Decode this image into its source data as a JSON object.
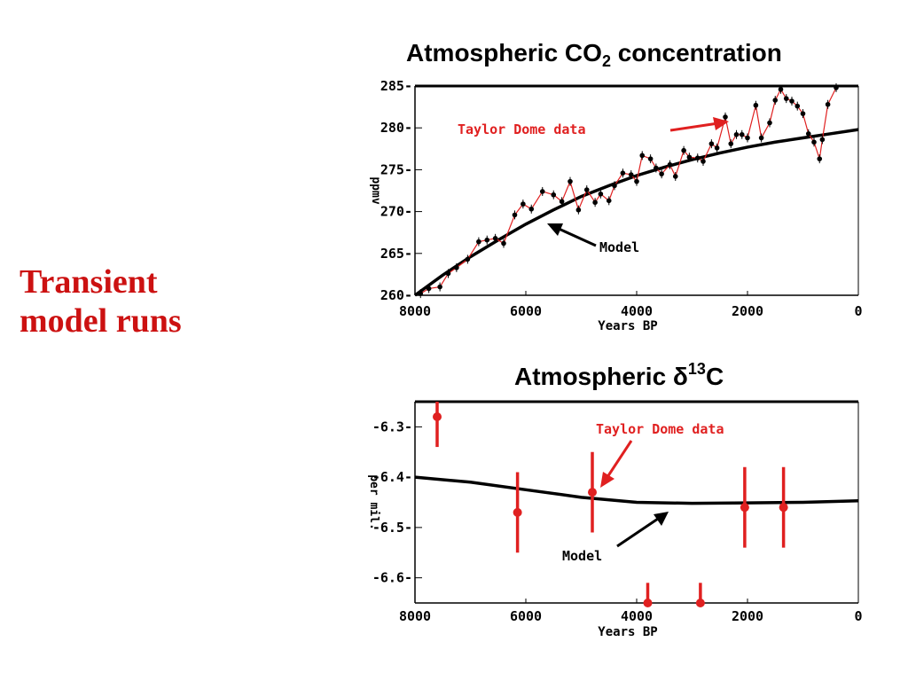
{
  "slide": {
    "title_line1": "Transient",
    "title_line2": "model runs"
  },
  "colors": {
    "data": "#e02020",
    "model": "#000000",
    "slide_title": "#cc1111"
  },
  "chart_data": [
    {
      "type": "line",
      "title_parts": [
        "Atmospheric CO",
        "2",
        " concentration"
      ],
      "xlabel": "Years BP",
      "ylabel": "ppmv",
      "xlim": [
        8000,
        0
      ],
      "ylim": [
        260,
        285
      ],
      "xticks": [
        "8000",
        "6000",
        "4000",
        "2000",
        "0"
      ],
      "yticks": [
        "260",
        "265",
        "270",
        "275",
        "280",
        "285"
      ],
      "annotations": {
        "data": "Taylor Dome data",
        "model": "Model"
      },
      "series": [
        {
          "name": "Taylor Dome data",
          "x": [
            7900,
            7750,
            7550,
            7400,
            7250,
            7050,
            6850,
            6700,
            6550,
            6400,
            6200,
            6050,
            5900,
            5700,
            5500,
            5350,
            5200,
            5050,
            4900,
            4750,
            4650,
            4500,
            4400,
            4250,
            4100,
            4000,
            3900,
            3750,
            3650,
            3550,
            3400,
            3300,
            3150,
            3050,
            2900,
            2800,
            2650,
            2550,
            2400,
            2300,
            2200,
            2100,
            2000,
            1850,
            1750,
            1600,
            1500,
            1400,
            1300,
            1200,
            1100,
            1000,
            900,
            800,
            700,
            650,
            550,
            400
          ],
          "y": [
            260.2,
            260.8,
            261.0,
            262.6,
            263.3,
            264.3,
            266.4,
            266.6,
            266.8,
            266.2,
            269.6,
            270.9,
            270.3,
            272.4,
            272.0,
            271.2,
            273.6,
            270.2,
            272.6,
            271.1,
            272.1,
            271.3,
            273.1,
            274.6,
            274.4,
            273.6,
            276.7,
            276.3,
            275.2,
            274.5,
            275.6,
            274.2,
            277.3,
            276.5,
            276.4,
            276.0,
            278.1,
            277.6,
            281.3,
            278.1,
            279.2,
            279.2,
            278.8,
            282.7,
            278.8,
            280.6,
            283.3,
            284.6,
            283.5,
            283.2,
            282.6,
            281.7,
            279.3,
            278.3,
            276.3,
            278.6,
            282.8,
            284.8
          ]
        },
        {
          "name": "Model",
          "x": [
            8000,
            7500,
            7000,
            6500,
            6000,
            5500,
            5000,
            4500,
            4000,
            3500,
            3000,
            2500,
            2000,
            1500,
            1000,
            500,
            0
          ],
          "y": [
            260.0,
            262.4,
            264.6,
            266.6,
            268.5,
            270.2,
            271.8,
            273.1,
            274.3,
            275.3,
            276.2,
            277.0,
            277.7,
            278.3,
            278.8,
            279.3,
            279.8
          ]
        }
      ]
    },
    {
      "type": "scatter",
      "title_parts": [
        "Atmospheric δ",
        "13",
        "C"
      ],
      "xlabel": "Years BP",
      "ylabel": "per mil.",
      "xlim": [
        8000,
        0
      ],
      "ylim": [
        -6.65,
        -6.25
      ],
      "xticks": [
        "8000",
        "6000",
        "4000",
        "2000",
        "0"
      ],
      "yticks": [
        "-6.3",
        "-6.4",
        "-6.5",
        "-6.6"
      ],
      "annotations": {
        "data": "Taylor Dome data",
        "model": "Model"
      },
      "series": [
        {
          "name": "Taylor Dome data",
          "x": [
            7600,
            6150,
            4800,
            3800,
            2850,
            2050,
            1350
          ],
          "y": [
            -6.28,
            -6.47,
            -6.43,
            -6.65,
            -6.65,
            -6.46,
            -6.46
          ],
          "err": [
            0.06,
            0.08,
            0.08,
            0.04,
            0.04,
            0.08,
            0.08
          ]
        },
        {
          "name": "Model",
          "x": [
            8000,
            7000,
            6000,
            5000,
            4000,
            3000,
            2000,
            1000,
            0
          ],
          "y": [
            -6.4,
            -6.41,
            -6.425,
            -6.44,
            -6.45,
            -6.452,
            -6.451,
            -6.45,
            -6.447
          ]
        }
      ]
    }
  ]
}
